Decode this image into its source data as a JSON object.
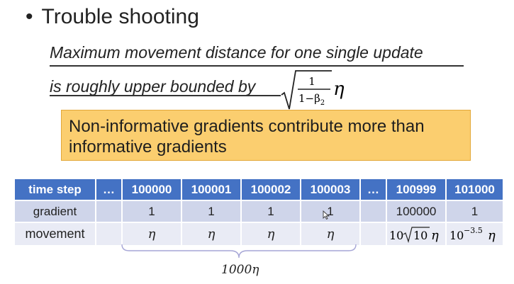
{
  "bullet": {
    "marker": "•",
    "title": "Trouble shooting"
  },
  "statement": {
    "line1": "Maximum movement distance for one single update",
    "line2": "is roughly upper bounded by"
  },
  "formula": {
    "numerator": "1",
    "denominator": "1−β",
    "subscript": "2",
    "eta": "η"
  },
  "callout": {
    "text": "Non-informative gradients contribute more than informative gradients"
  },
  "table": {
    "headers": [
      "time step",
      "…",
      "100000",
      "100001",
      "100002",
      "100003",
      "…",
      "100999",
      "101000"
    ],
    "gradient_row": [
      "gradient",
      "",
      "1",
      "1",
      "1",
      "1",
      "",
      "100000",
      "1"
    ],
    "movement_row": {
      "label": "movement",
      "c1": "",
      "c2": "η",
      "c3": "η",
      "c4": "η",
      "c5": "η",
      "c6": "",
      "c7_coef": "10",
      "c7_radicand": "10",
      "c7_eta": "η",
      "c8_base": "10",
      "c8_exp": "−3.5",
      "c8_eta": "η"
    }
  },
  "brace_label": "1000η",
  "colors": {
    "header_bg": "#4472c4",
    "row1_bg": "#cfd5ea",
    "row2_bg": "#e9ebf5",
    "callout_bg": "#fbce6f",
    "callout_border": "#e3a83a"
  },
  "icons": {
    "cursor": "mouse-pointer-icon",
    "radical": "square-root-icon",
    "brace": "curly-brace-icon"
  }
}
